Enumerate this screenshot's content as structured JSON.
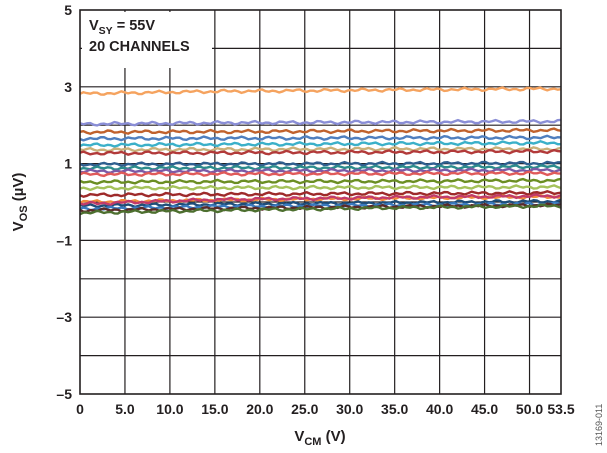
{
  "chart_data": {
    "type": "line",
    "xlabel": {
      "main": "V",
      "sub": "CM",
      "unit": " (V)"
    },
    "ylabel": {
      "main": "V",
      "sub": "OS",
      "unit": " (µV)"
    },
    "xlim": [
      0,
      53.5
    ],
    "ylim": [
      -5,
      5
    ],
    "x_ticks": [
      0,
      5,
      10,
      15,
      20,
      25,
      30,
      35,
      40,
      45,
      50,
      53.5
    ],
    "x_tick_labels": [
      "0",
      "5.0",
      "10.0",
      "15.0",
      "20.0",
      "25.0",
      "30.0",
      "35.0",
      "40.0",
      "45.0",
      "50.0",
      "53.5"
    ],
    "y_ticks": [
      -5,
      -3,
      -1,
      1,
      3,
      5
    ],
    "y_tick_labels": [
      "–5",
      "–3",
      "–1",
      "1",
      "3",
      "5"
    ],
    "grid": true,
    "annotation": {
      "line1": {
        "main": "V",
        "sub": "SY",
        "rest": " = 55V"
      },
      "line2": "20 CHANNELS"
    },
    "figure_code": "13169-011",
    "series": [
      {
        "color": "#f5a35f",
        "values": [
          2.82,
          2.88,
          2.92,
          2.95
        ]
      },
      {
        "color": "#8a8ed6",
        "values": [
          2.03,
          2.06,
          2.08,
          2.1
        ]
      },
      {
        "color": "#c0622d",
        "values": [
          1.82,
          1.83,
          1.85,
          1.87
        ]
      },
      {
        "color": "#4f7fbf",
        "values": [
          1.65,
          1.66,
          1.67,
          1.68
        ]
      },
      {
        "color": "#3bb0c9",
        "values": [
          1.48,
          1.5,
          1.52,
          1.54
        ]
      },
      {
        "color": "#c9b07a",
        "values": [
          1.36,
          1.37,
          1.38,
          1.38
        ]
      },
      {
        "color": "#b23a3a",
        "values": [
          1.27,
          1.28,
          1.3,
          1.32
        ]
      },
      {
        "color": "#2f5f8f",
        "values": [
          0.98,
          0.99,
          1.0,
          1.01
        ]
      },
      {
        "color": "#2c8c8c",
        "values": [
          0.88,
          0.89,
          0.9,
          0.92
        ]
      },
      {
        "color": "#7b5aa6",
        "values": [
          0.8,
          0.81,
          0.82,
          0.83
        ]
      },
      {
        "color": "#e05a5a",
        "values": [
          0.72,
          0.73,
          0.74,
          0.75
        ]
      },
      {
        "color": "#6b8e23",
        "values": [
          0.52,
          0.53,
          0.54,
          0.56
        ]
      },
      {
        "color": "#a5c25b",
        "values": [
          0.36,
          0.37,
          0.38,
          0.39
        ]
      },
      {
        "color": "#9e2a2a",
        "values": [
          0.18,
          0.2,
          0.22,
          0.24
        ]
      },
      {
        "color": "#f08a3c",
        "values": [
          0.0,
          0.05,
          0.1,
          0.14
        ]
      },
      {
        "color": "#1f4e79",
        "values": [
          -0.1,
          -0.06,
          -0.02,
          0.02
        ]
      },
      {
        "color": "#3a7abf",
        "values": [
          -0.18,
          -0.12,
          -0.08,
          -0.05
        ]
      },
      {
        "color": "#5a2a2a",
        "values": [
          -0.22,
          -0.17,
          -0.12,
          -0.08
        ]
      },
      {
        "color": "#4d6f2f",
        "values": [
          -0.28,
          -0.22,
          -0.15,
          -0.1
        ]
      },
      {
        "color": "#c23b6a",
        "values": [
          -0.05,
          0.06,
          0.12,
          0.16
        ]
      }
    ],
    "x": [
      0,
      15,
      35,
      53.5
    ]
  }
}
